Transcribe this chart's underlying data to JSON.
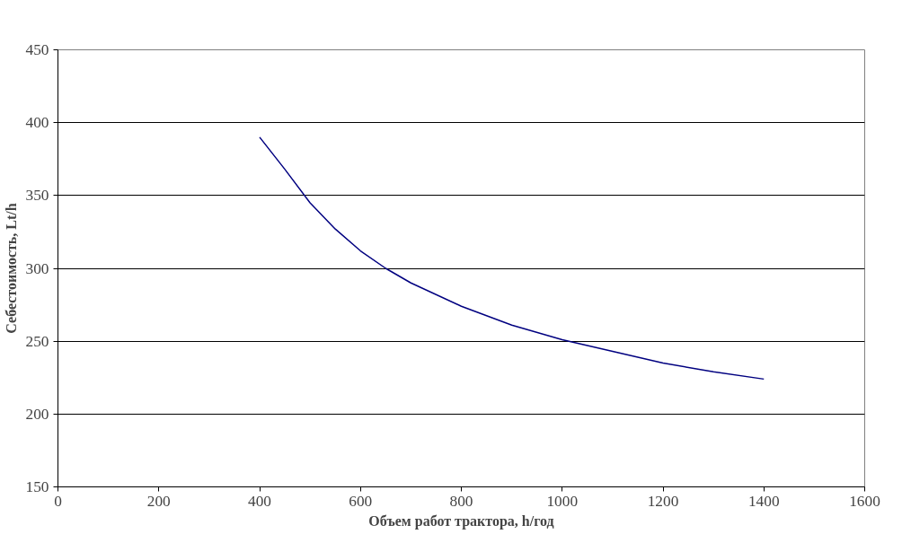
{
  "chart_data": {
    "type": "line",
    "xlabel": "Объем работ трактора, h/год",
    "ylabel": "Себестоимость, Lt/h",
    "x": [
      400,
      450,
      500,
      550,
      600,
      650,
      700,
      800,
      900,
      1000,
      1100,
      1200,
      1300,
      1400
    ],
    "series": [
      {
        "color": "#000080",
        "values": [
          390,
          368,
          345,
          327,
          312,
          300,
          290,
          274,
          261,
          251,
          243,
          235,
          229,
          224
        ]
      }
    ],
    "xlim": [
      0,
      1600
    ],
    "xticks": [
      0,
      200,
      400,
      600,
      800,
      1000,
      1200,
      1400,
      1600
    ],
    "ylim": [
      150,
      450
    ],
    "yticks": [
      150,
      200,
      250,
      300,
      350,
      400,
      450
    ],
    "grid": "y",
    "marker": "none",
    "line_style": "solid"
  }
}
